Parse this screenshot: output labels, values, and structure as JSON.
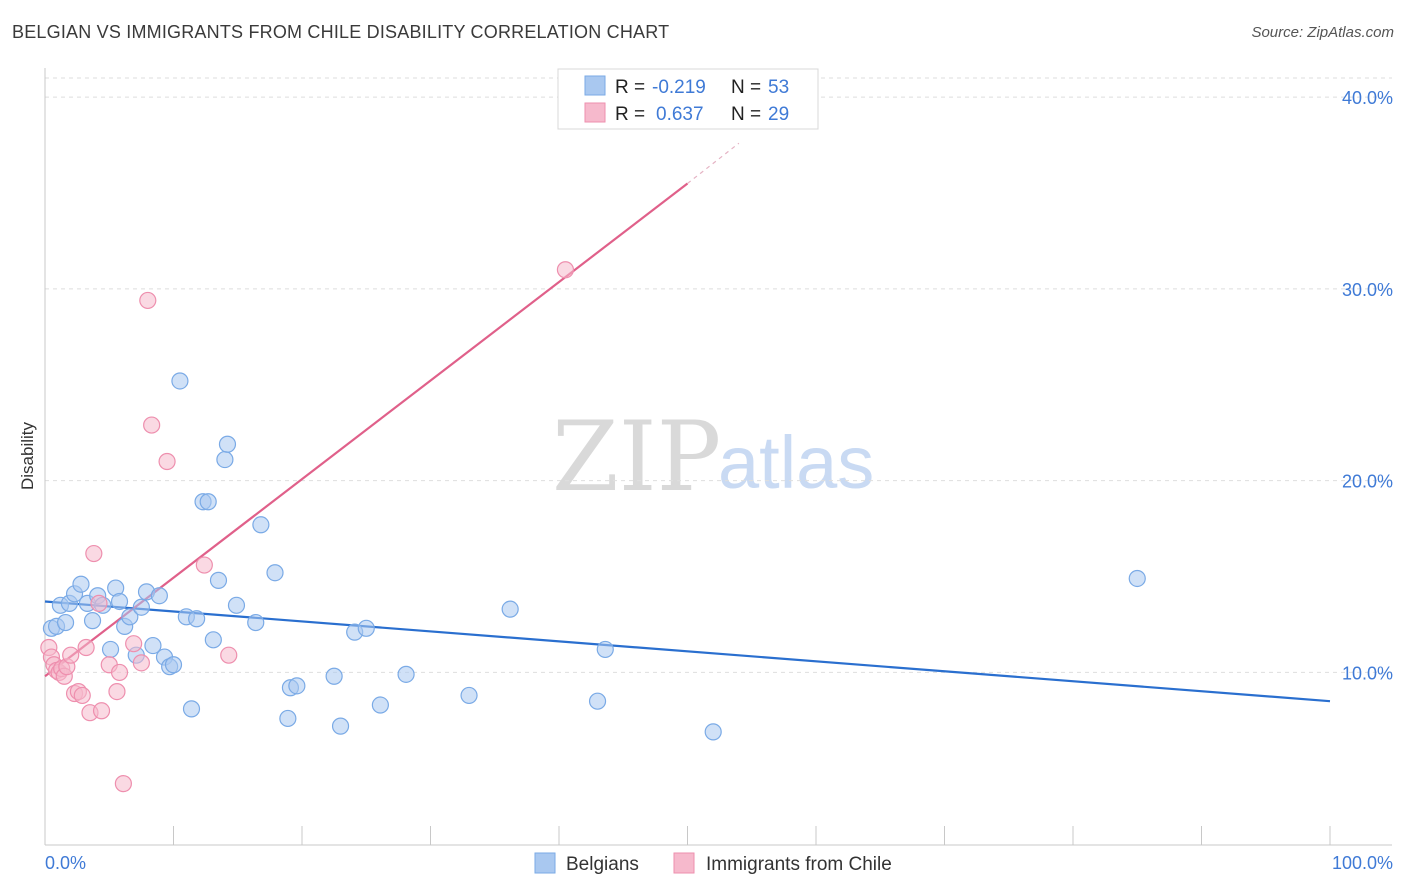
{
  "title": "BELGIAN VS IMMIGRANTS FROM CHILE DISABILITY CORRELATION CHART",
  "source": "Source: ZipAtlas.com",
  "watermark": {
    "zip": "ZIP",
    "atlas": "atlas"
  },
  "colors": {
    "belgians_fill": "#a9c8f0",
    "belgians_stroke": "#7aaae6",
    "belgians_line": "#2a6fcf",
    "chile_fill": "#f6b9cc",
    "chile_stroke": "#ee8fae",
    "chile_line": "#e0608a",
    "axis_label": "#3f7ad6"
  },
  "legend": {
    "rows": [
      {
        "r_label": "R =",
        "r_value": "-0.219",
        "n_label": "N =",
        "n_value": "53"
      },
      {
        "r_label": "R =",
        "r_value": "0.637",
        "n_label": "N =",
        "n_value": "29"
      }
    ]
  },
  "bottom_legend": {
    "belgians": "Belgians",
    "chile": "Immigrants from Chile"
  },
  "chart_data": {
    "type": "scatter",
    "title": "BELGIAN VS IMMIGRANTS FROM CHILE DISABILITY CORRELATION CHART",
    "xlabel": "",
    "ylabel": "Disability",
    "xlim": [
      0,
      100
    ],
    "ylim": [
      1,
      41
    ],
    "x_tick_labels": [
      "0.0%",
      "100.0%"
    ],
    "y_ticks": [
      10,
      20,
      30,
      40
    ],
    "y_tick_labels": [
      "10.0%",
      "20.0%",
      "30.0%",
      "40.0%"
    ],
    "grid": true,
    "series": [
      {
        "name": "Belgians",
        "r": -0.219,
        "n": 53,
        "trend": {
          "x": [
            0,
            100
          ],
          "y": [
            13.7,
            8.5
          ]
        },
        "points": [
          {
            "x": 0.5,
            "y": 12.3
          },
          {
            "x": 0.9,
            "y": 12.4
          },
          {
            "x": 1.2,
            "y": 13.5
          },
          {
            "x": 1.6,
            "y": 12.6
          },
          {
            "x": 1.9,
            "y": 13.6
          },
          {
            "x": 2.3,
            "y": 14.1
          },
          {
            "x": 2.8,
            "y": 14.6
          },
          {
            "x": 3.3,
            "y": 13.6
          },
          {
            "x": 3.7,
            "y": 12.7
          },
          {
            "x": 4.1,
            "y": 14.0
          },
          {
            "x": 4.5,
            "y": 13.5
          },
          {
            "x": 5.1,
            "y": 11.2
          },
          {
            "x": 5.5,
            "y": 14.4
          },
          {
            "x": 5.8,
            "y": 13.7
          },
          {
            "x": 6.2,
            "y": 12.4
          },
          {
            "x": 6.6,
            "y": 12.9
          },
          {
            "x": 7.1,
            "y": 10.9
          },
          {
            "x": 7.5,
            "y": 13.4
          },
          {
            "x": 7.9,
            "y": 14.2
          },
          {
            "x": 8.4,
            "y": 11.4
          },
          {
            "x": 8.9,
            "y": 14.0
          },
          {
            "x": 9.3,
            "y": 10.8
          },
          {
            "x": 9.7,
            "y": 10.3
          },
          {
            "x": 10.0,
            "y": 10.4
          },
          {
            "x": 10.5,
            "y": 25.2
          },
          {
            "x": 11.0,
            "y": 12.9
          },
          {
            "x": 11.4,
            "y": 8.1
          },
          {
            "x": 11.8,
            "y": 12.8
          },
          {
            "x": 12.3,
            "y": 18.9
          },
          {
            "x": 12.7,
            "y": 18.9
          },
          {
            "x": 13.1,
            "y": 11.7
          },
          {
            "x": 13.5,
            "y": 14.8
          },
          {
            "x": 14.0,
            "y": 21.1
          },
          {
            "x": 14.2,
            "y": 21.9
          },
          {
            "x": 14.9,
            "y": 13.5
          },
          {
            "x": 16.4,
            "y": 12.6
          },
          {
            "x": 16.8,
            "y": 17.7
          },
          {
            "x": 17.9,
            "y": 15.2
          },
          {
            "x": 18.9,
            "y": 7.6
          },
          {
            "x": 19.1,
            "y": 9.2
          },
          {
            "x": 19.6,
            "y": 9.3
          },
          {
            "x": 22.5,
            "y": 9.8
          },
          {
            "x": 23.0,
            "y": 7.2
          },
          {
            "x": 24.1,
            "y": 12.1
          },
          {
            "x": 25.0,
            "y": 12.3
          },
          {
            "x": 26.1,
            "y": 8.3
          },
          {
            "x": 28.1,
            "y": 9.9
          },
          {
            "x": 33.0,
            "y": 8.8
          },
          {
            "x": 36.2,
            "y": 13.3
          },
          {
            "x": 43.0,
            "y": 8.5
          },
          {
            "x": 43.6,
            "y": 11.2
          },
          {
            "x": 52.0,
            "y": 6.9
          },
          {
            "x": 85.0,
            "y": 14.9
          }
        ]
      },
      {
        "name": "Immigrants from Chile",
        "r": 0.637,
        "n": 29,
        "trend": {
          "x": [
            0,
            50
          ],
          "y": [
            9.8,
            35.5
          ],
          "dashed_extension": {
            "x": [
              50,
              54
            ],
            "y": [
              35.5,
              37.6
            ]
          }
        },
        "points": [
          {
            "x": 0.3,
            "y": 11.3
          },
          {
            "x": 0.5,
            "y": 10.8
          },
          {
            "x": 0.7,
            "y": 10.4
          },
          {
            "x": 0.9,
            "y": 10.1
          },
          {
            "x": 1.1,
            "y": 10.0
          },
          {
            "x": 1.3,
            "y": 10.2
          },
          {
            "x": 1.5,
            "y": 9.8
          },
          {
            "x": 1.7,
            "y": 10.3
          },
          {
            "x": 2.0,
            "y": 10.9
          },
          {
            "x": 2.3,
            "y": 8.9
          },
          {
            "x": 2.6,
            "y": 9.0
          },
          {
            "x": 2.9,
            "y": 8.8
          },
          {
            "x": 3.2,
            "y": 11.3
          },
          {
            "x": 3.5,
            "y": 7.9
          },
          {
            "x": 3.8,
            "y": 16.2
          },
          {
            "x": 4.2,
            "y": 13.6
          },
          {
            "x": 4.4,
            "y": 8.0
          },
          {
            "x": 5.0,
            "y": 10.4
          },
          {
            "x": 5.6,
            "y": 9.0
          },
          {
            "x": 5.8,
            "y": 10.0
          },
          {
            "x": 6.1,
            "y": 4.2
          },
          {
            "x": 6.9,
            "y": 11.5
          },
          {
            "x": 7.5,
            "y": 10.5
          },
          {
            "x": 8.0,
            "y": 29.4
          },
          {
            "x": 8.3,
            "y": 22.9
          },
          {
            "x": 9.5,
            "y": 21.0
          },
          {
            "x": 12.4,
            "y": 15.6
          },
          {
            "x": 14.3,
            "y": 10.9
          },
          {
            "x": 40.5,
            "y": 31.0
          }
        ]
      }
    ]
  }
}
